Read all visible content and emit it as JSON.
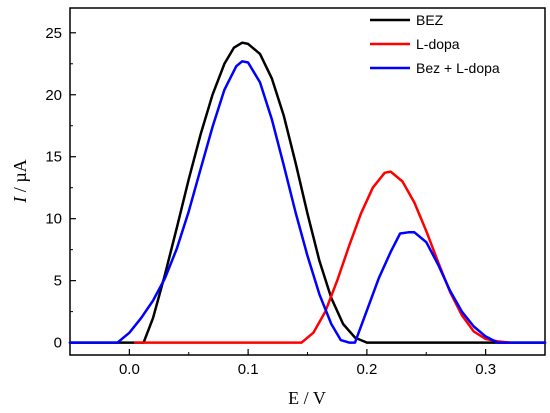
{
  "chart_data": {
    "type": "line",
    "title": "",
    "xlabel": "E / V",
    "ylabel_italic": "I",
    "ylabel_rest": " / µA",
    "xlim": [
      -0.05,
      0.35
    ],
    "ylim": [
      -1,
      27
    ],
    "xticks": [
      0.0,
      0.1,
      0.2,
      0.3
    ],
    "xtick_labels": [
      "0.0",
      "0.1",
      "0.2",
      "0.3"
    ],
    "yticks": [
      0,
      5,
      10,
      15,
      20,
      25
    ],
    "ytick_labels": [
      "0",
      "5",
      "10",
      "15",
      "20",
      "25"
    ],
    "grid": false,
    "legend_position": "top-right",
    "series": [
      {
        "name": "BEZ",
        "color": "#000000",
        "points": [
          [
            -0.05,
            0
          ],
          [
            0.005,
            0
          ],
          [
            0.012,
            0
          ],
          [
            0.02,
            2.0
          ],
          [
            0.03,
            5.5
          ],
          [
            0.04,
            9.3
          ],
          [
            0.05,
            13.2
          ],
          [
            0.06,
            16.8
          ],
          [
            0.07,
            20.0
          ],
          [
            0.08,
            22.5
          ],
          [
            0.088,
            23.8
          ],
          [
            0.095,
            24.2
          ],
          [
            0.1,
            24.1
          ],
          [
            0.11,
            23.3
          ],
          [
            0.12,
            21.3
          ],
          [
            0.13,
            18.3
          ],
          [
            0.14,
            14.5
          ],
          [
            0.15,
            10.4
          ],
          [
            0.16,
            6.6
          ],
          [
            0.17,
            3.6
          ],
          [
            0.18,
            1.5
          ],
          [
            0.19,
            0.4
          ],
          [
            0.2,
            0
          ],
          [
            0.35,
            0
          ]
        ]
      },
      {
        "name": "L-dopa",
        "color": "#ff0000",
        "points": [
          [
            0.005,
            0
          ],
          [
            0.145,
            0
          ],
          [
            0.155,
            0.8
          ],
          [
            0.165,
            2.5
          ],
          [
            0.175,
            5.0
          ],
          [
            0.185,
            7.8
          ],
          [
            0.195,
            10.4
          ],
          [
            0.205,
            12.5
          ],
          [
            0.215,
            13.7
          ],
          [
            0.22,
            13.8
          ],
          [
            0.23,
            13.0
          ],
          [
            0.24,
            11.3
          ],
          [
            0.25,
            9.0
          ],
          [
            0.26,
            6.5
          ],
          [
            0.27,
            4.1
          ],
          [
            0.28,
            2.2
          ],
          [
            0.29,
            0.9
          ],
          [
            0.3,
            0.3
          ],
          [
            0.31,
            0.1
          ],
          [
            0.32,
            0
          ]
        ]
      },
      {
        "name": "Bez + L-dopa",
        "color": "#0000ff",
        "points": [
          [
            -0.05,
            0
          ],
          [
            -0.01,
            0
          ],
          [
            0.0,
            0.8
          ],
          [
            0.01,
            2.0
          ],
          [
            0.02,
            3.4
          ],
          [
            0.03,
            5.2
          ],
          [
            0.04,
            7.6
          ],
          [
            0.05,
            10.6
          ],
          [
            0.06,
            14.0
          ],
          [
            0.07,
            17.4
          ],
          [
            0.08,
            20.4
          ],
          [
            0.09,
            22.3
          ],
          [
            0.095,
            22.7
          ],
          [
            0.1,
            22.6
          ],
          [
            0.11,
            21.0
          ],
          [
            0.12,
            18.0
          ],
          [
            0.13,
            14.3
          ],
          [
            0.14,
            10.5
          ],
          [
            0.15,
            7.0
          ],
          [
            0.16,
            3.9
          ],
          [
            0.17,
            1.5
          ],
          [
            0.178,
            0.2
          ],
          [
            0.185,
            0
          ],
          [
            0.19,
            0
          ],
          [
            0.2,
            2.6
          ],
          [
            0.21,
            5.2
          ],
          [
            0.22,
            7.3
          ],
          [
            0.228,
            8.8
          ],
          [
            0.235,
            8.9
          ],
          [
            0.24,
            8.9
          ],
          [
            0.25,
            8.1
          ],
          [
            0.26,
            6.3
          ],
          [
            0.27,
            4.2
          ],
          [
            0.28,
            2.5
          ],
          [
            0.29,
            1.3
          ],
          [
            0.3,
            0.5
          ],
          [
            0.31,
            0
          ],
          [
            0.35,
            0
          ]
        ]
      }
    ]
  }
}
